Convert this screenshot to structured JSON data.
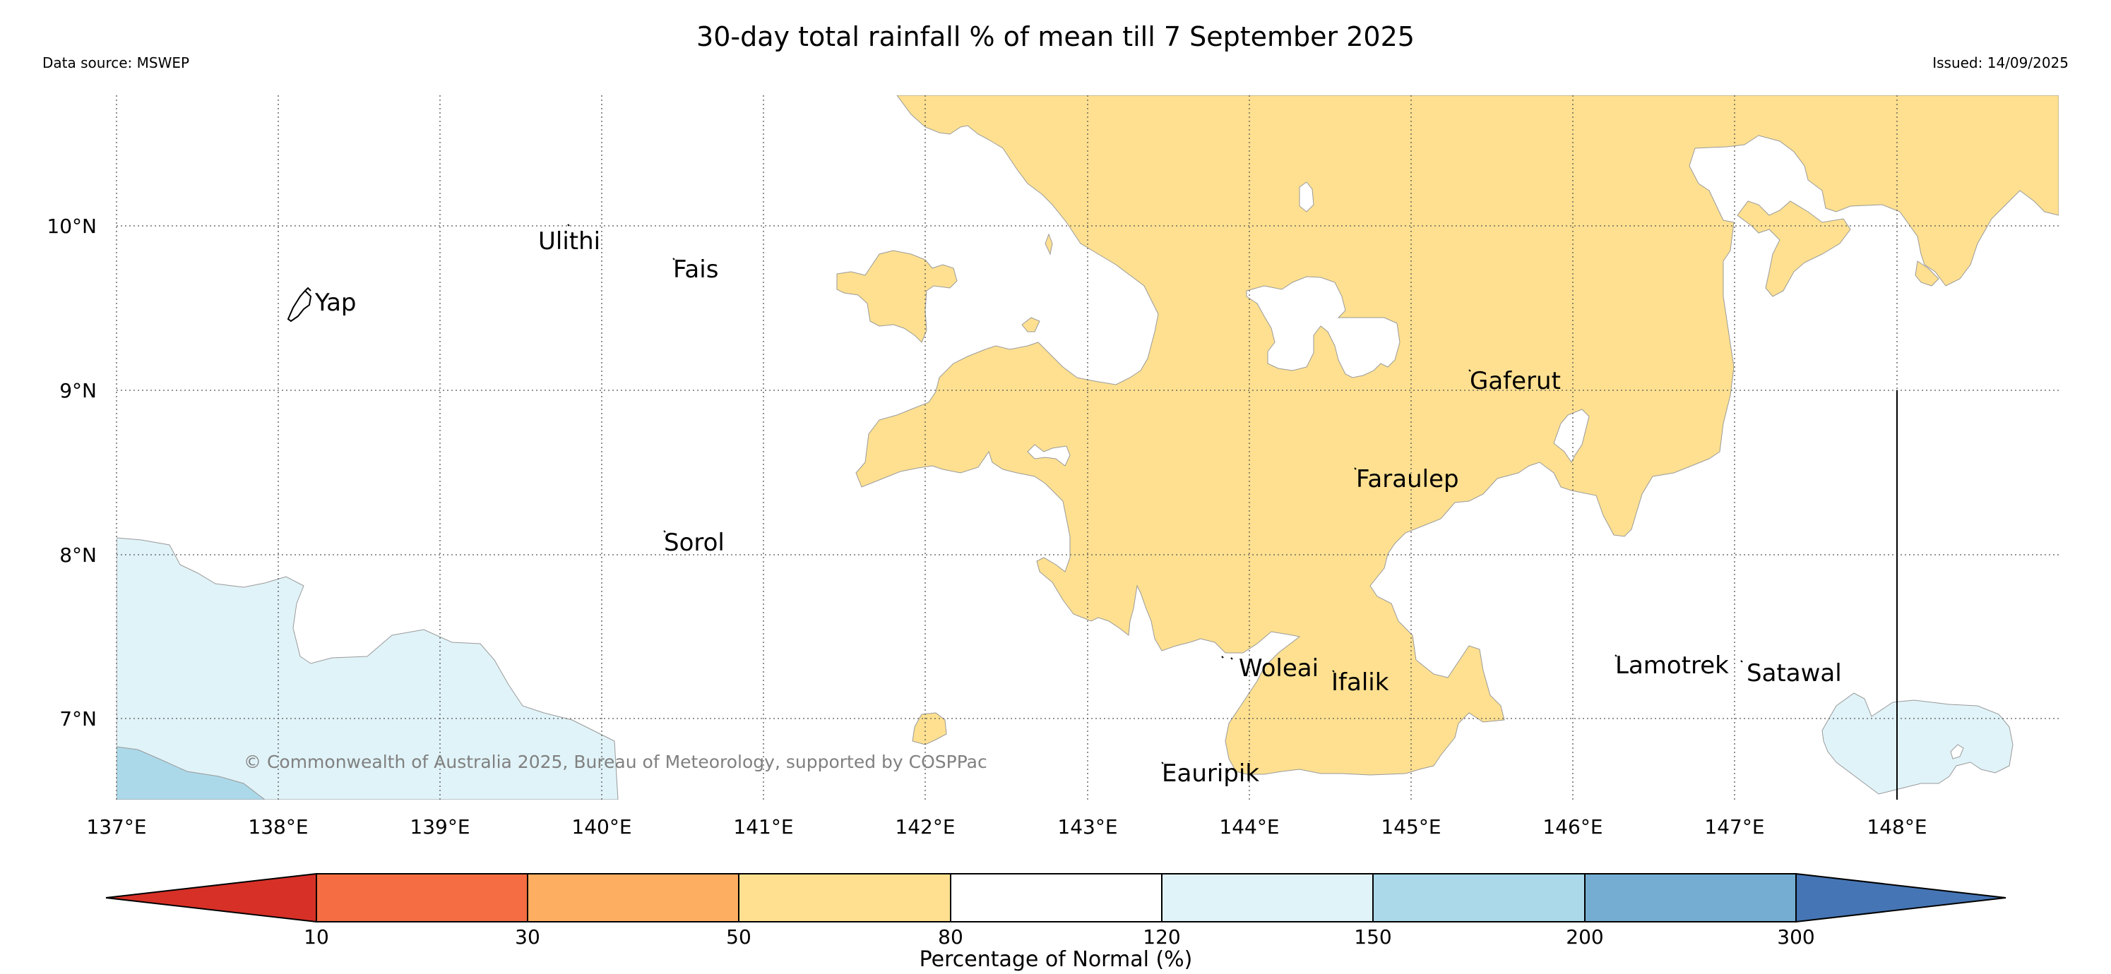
{
  "header": {
    "title": "30-day total rainfall % of mean till 7 September 2025",
    "source": "Data source: MSWEP",
    "issued": "Issued: 14/09/2025"
  },
  "map": {
    "latitude_labels": [
      "10°N",
      "9°N",
      "8°N",
      "7°N"
    ],
    "longitude_labels": [
      "137°E",
      "138°E",
      "139°E",
      "140°E",
      "141°E",
      "142°E",
      "143°E",
      "144°E",
      "145°E",
      "146°E",
      "147°E",
      "148°E"
    ],
    "places": {
      "yap": "Yap",
      "ulithi": "Ulithi",
      "fais": "Fais",
      "sorol": "Sorol",
      "gaferut": "Gaferut",
      "faraulep": "Faraulep",
      "woleai": "Woleai",
      "ifalik": "Ifalik",
      "eauripik": "Eauripik",
      "lamotrek": "Lamotrek",
      "satawal": "Satawal"
    },
    "copyright": "© Commonwealth of Australia 2025, Bureau of Meteorology, supported by COSPPac",
    "colors": {
      "dry_50_80": "#fedf90",
      "wet_120_150": "#e0f3f8",
      "wet_150_200": "#abd9e9"
    }
  },
  "colorbar": {
    "label": "Percentage of Normal (%)",
    "ticks": [
      "10",
      "30",
      "50",
      "80",
      "120",
      "150",
      "200",
      "300"
    ],
    "colors": [
      "#d73027",
      "#f46d43",
      "#fdae61",
      "#fee090",
      "#ffffff",
      "#e0f3f8",
      "#abd9e9",
      "#74add1",
      "#4575b4"
    ]
  }
}
